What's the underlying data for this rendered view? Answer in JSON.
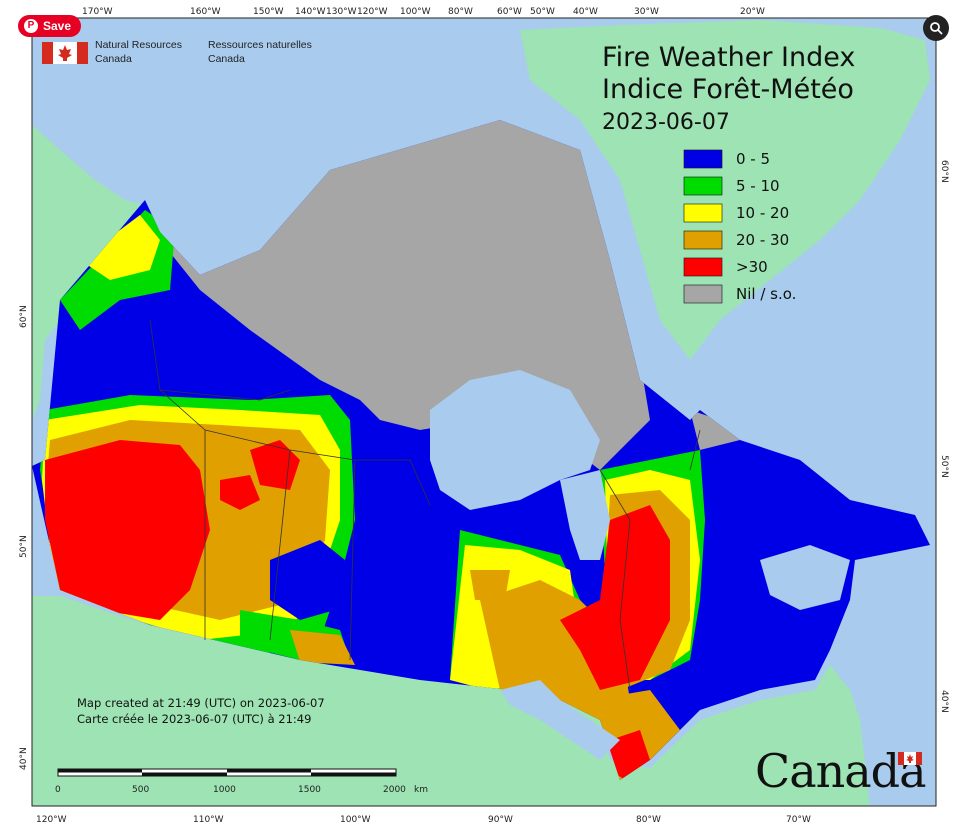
{
  "pin_button": {
    "label": "Save"
  },
  "ministry": {
    "en_line1": "Natural Resources",
    "en_line2": "Canada",
    "fr_line1": "Ressources naturelles",
    "fr_line2": "Canada"
  },
  "title": {
    "line1": "Fire Weather Index",
    "line2": "Indice Forêt-Météo",
    "date": "2023-06-07"
  },
  "legend": [
    {
      "label": "0 - 5",
      "color": "#0000e6"
    },
    {
      "label": "5 - 10",
      "color": "#00dc00"
    },
    {
      "label": "10 - 20",
      "color": "#ffff00"
    },
    {
      "label": "20 - 30",
      "color": "#e0a000"
    },
    {
      "label": ">30",
      "color": "#ff0000"
    },
    {
      "label": "Nil / s.o.",
      "color": "#a6a6a6"
    }
  ],
  "credit": {
    "en": "Map created at 21:49 (UTC) on 2023-06-07",
    "fr": "Carte créée le 2023-06-07 (UTC) à 21:49"
  },
  "scale_bar": {
    "labels": [
      "0",
      "500",
      "1000",
      "1500",
      "2000"
    ],
    "unit": "km"
  },
  "graticule": {
    "top": [
      "170°W",
      "160°W",
      "150°W",
      "140°W",
      "130°W",
      "120°W",
      "100°W",
      "80°W",
      "60°W",
      "50°W",
      "40°W",
      "30°W",
      "20°W"
    ],
    "bottom": [
      "120°W",
      "110°W",
      "100°W",
      "90°W",
      "80°W",
      "70°W"
    ],
    "left": [
      "60°N",
      "50°N",
      "40°N"
    ],
    "right": [
      "60°N",
      "50°N",
      "40°N"
    ]
  },
  "wordmark": "Canada",
  "colors": {
    "ocean": "#a9ccee",
    "land_foreign": "#9de3b3",
    "nil": "#a6a6a6"
  }
}
